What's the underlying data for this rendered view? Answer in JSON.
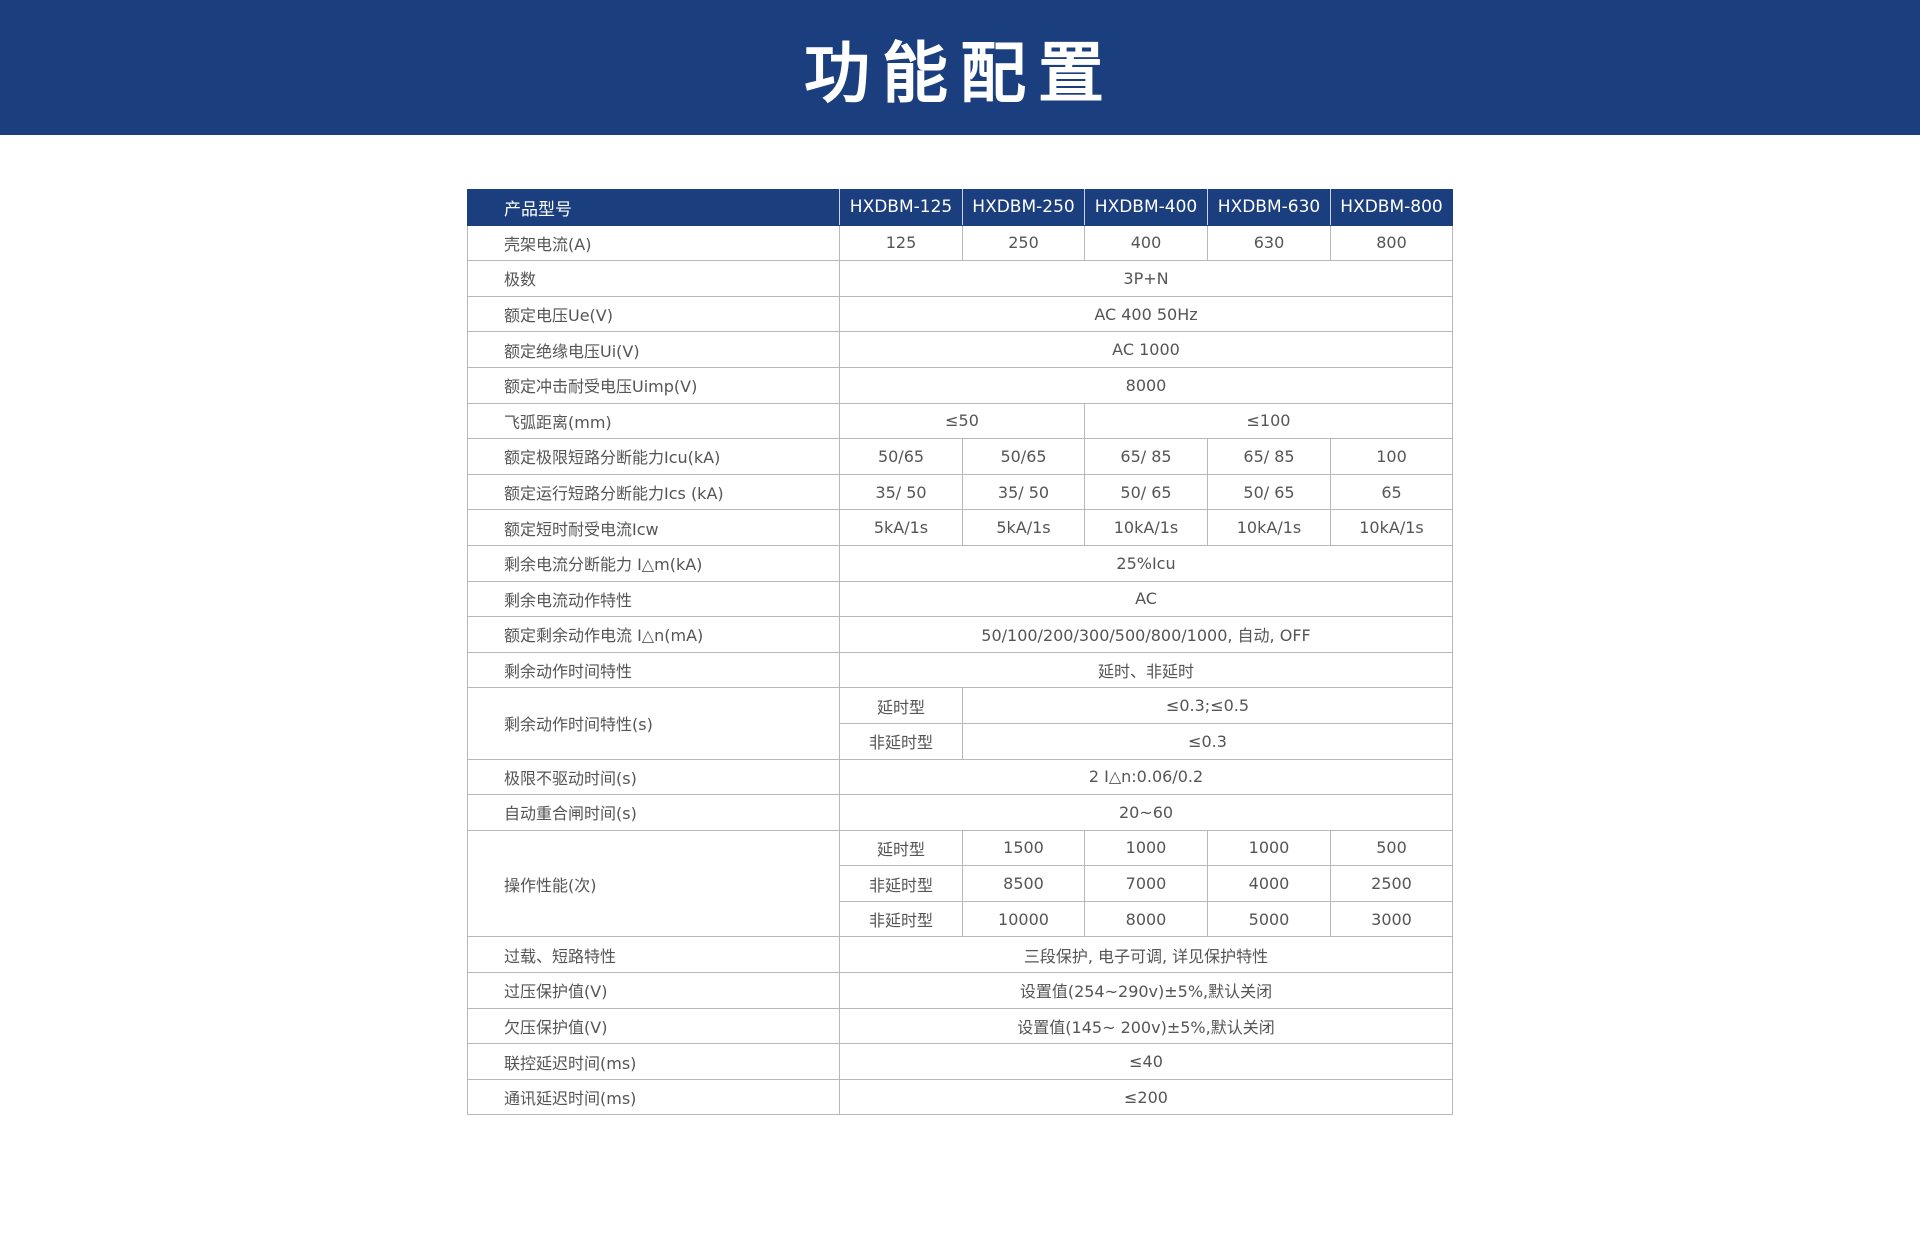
{
  "banner": {
    "title": "功能配置"
  },
  "colors": {
    "header_bg": "#1b3e7e",
    "border": "#b8b8b8",
    "text": "#555555"
  },
  "table": {
    "header": [
      "产品型号",
      "HXDBM-125",
      "HXDBM-250",
      "HXDBM-400",
      "HXDBM-630",
      "HXDBM-800"
    ],
    "rows": [
      [
        {
          "t": "壳架电流(A)"
        },
        {
          "t": "125"
        },
        {
          "t": "250"
        },
        {
          "t": "400"
        },
        {
          "t": "630"
        },
        {
          "t": "800"
        }
      ],
      [
        {
          "t": "极数"
        },
        {
          "t": "3P+N",
          "cs": 5
        }
      ],
      [
        {
          "t": "额定电压Ue(V)"
        },
        {
          "t": "AC 400 50Hz",
          "cs": 5
        }
      ],
      [
        {
          "t": "额定绝缘电压Ui(V)"
        },
        {
          "t": "AC 1000",
          "cs": 5
        }
      ],
      [
        {
          "t": "额定冲击耐受电压Uimp(V)"
        },
        {
          "t": "8000",
          "cs": 5
        }
      ],
      [
        {
          "t": "飞弧距离(mm)"
        },
        {
          "t": "≤50",
          "cs": 2
        },
        {
          "t": "≤100",
          "cs": 3
        }
      ],
      [
        {
          "t": "额定极限短路分断能力Icu(kA)"
        },
        {
          "t": "50/65"
        },
        {
          "t": "50/65"
        },
        {
          "t": "65/ 85"
        },
        {
          "t": "65/ 85"
        },
        {
          "t": "100"
        }
      ],
      [
        {
          "t": "额定运行短路分断能力Ics (kA)"
        },
        {
          "t": "35/ 50"
        },
        {
          "t": "35/ 50"
        },
        {
          "t": "50/ 65"
        },
        {
          "t": "50/ 65"
        },
        {
          "t": "65"
        }
      ],
      [
        {
          "t": "额定短时耐受电流Icw"
        },
        {
          "t": "5kA/1s"
        },
        {
          "t": "5kA/1s"
        },
        {
          "t": "10kA/1s"
        },
        {
          "t": "10kA/1s"
        },
        {
          "t": "10kA/1s"
        }
      ],
      [
        {
          "t": "剩余电流分断能力 I△m(kA)"
        },
        {
          "t": "25%Icu",
          "cs": 5
        }
      ],
      [
        {
          "t": "剩余电流动作特性"
        },
        {
          "t": "AC",
          "cs": 5
        }
      ],
      [
        {
          "t": "额定剩余动作电流 I△n(mA)"
        },
        {
          "t": "50/100/200/300/500/800/1000, 自动, OFF",
          "cs": 5
        }
      ],
      [
        {
          "t": "剩余动作时间特性"
        },
        {
          "t": "延时、非延时",
          "cs": 5
        }
      ],
      [
        {
          "t": "剩余动作时间特性(s)",
          "rs": 2
        },
        {
          "t": "延时型"
        },
        {
          "t": "≤0.3;≤0.5",
          "cs": 4
        }
      ],
      [
        {
          "t": "非延时型"
        },
        {
          "t": "≤0.3",
          "cs": 4
        }
      ],
      [
        {
          "t": "极限不驱动时间(s)"
        },
        {
          "t": "2 I△n:0.06/0.2",
          "cs": 5
        }
      ],
      [
        {
          "t": "自动重合闸时间(s)"
        },
        {
          "t": "20~60",
          "cs": 5
        }
      ],
      [
        {
          "t": "操作性能(次)",
          "rs": 3
        },
        {
          "t": "延时型"
        },
        {
          "t": "1500"
        },
        {
          "t": "1000"
        },
        {
          "t": "1000"
        },
        {
          "t": "500"
        }
      ],
      [
        {
          "t": "非延时型"
        },
        {
          "t": "8500"
        },
        {
          "t": "7000"
        },
        {
          "t": "4000"
        },
        {
          "t": "2500"
        }
      ],
      [
        {
          "t": "非延时型"
        },
        {
          "t": "10000"
        },
        {
          "t": "8000"
        },
        {
          "t": "5000"
        },
        {
          "t": "3000"
        }
      ],
      [
        {
          "t": "过载、短路特性"
        },
        {
          "t": "三段保护, 电子可调, 详见保护特性",
          "cs": 5
        }
      ],
      [
        {
          "t": "过压保护值(V)"
        },
        {
          "t": "设置值(254~290v)±5%,默认关闭",
          "cs": 5
        }
      ],
      [
        {
          "t": "欠压保护值(V)"
        },
        {
          "t": "设置值(145~ 200v)±5%,默认关闭",
          "cs": 5
        }
      ],
      [
        {
          "t": "联控延迟时间(ms)"
        },
        {
          "t": "≤40",
          "cs": 5
        }
      ],
      [
        {
          "t": "通讯延迟时间(ms)"
        },
        {
          "t": "≤200",
          "cs": 5
        }
      ]
    ]
  }
}
